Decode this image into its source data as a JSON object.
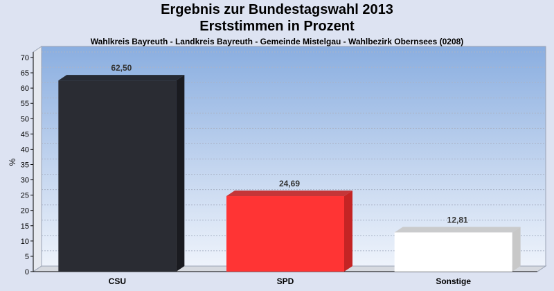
{
  "chart_data": {
    "type": "bar",
    "title": "Ergebnis zur Bundestagswahl 2013",
    "subtitle": "Erststimmen in Prozent",
    "subsubtitle": "Wahlkreis Bayreuth - Landkreis Bayreuth - Gemeinde Mistelgau - Wahlbezirk Obernsees (0208)",
    "ylabel": "%",
    "xlabel": "",
    "ylim": [
      0,
      70
    ],
    "ytick_step": 5,
    "grid": true,
    "categories": [
      "CSU",
      "SPD",
      "Sonstige"
    ],
    "values": [
      62.5,
      24.69,
      12.81
    ],
    "data_labels": [
      "62,50",
      "24,69",
      "12,81"
    ],
    "colors": [
      "#2a2c33",
      "#ff3434",
      "#ffffff"
    ],
    "side_colors": [
      "#1a1b20",
      "#c42424",
      "#c8c8c8"
    ]
  }
}
